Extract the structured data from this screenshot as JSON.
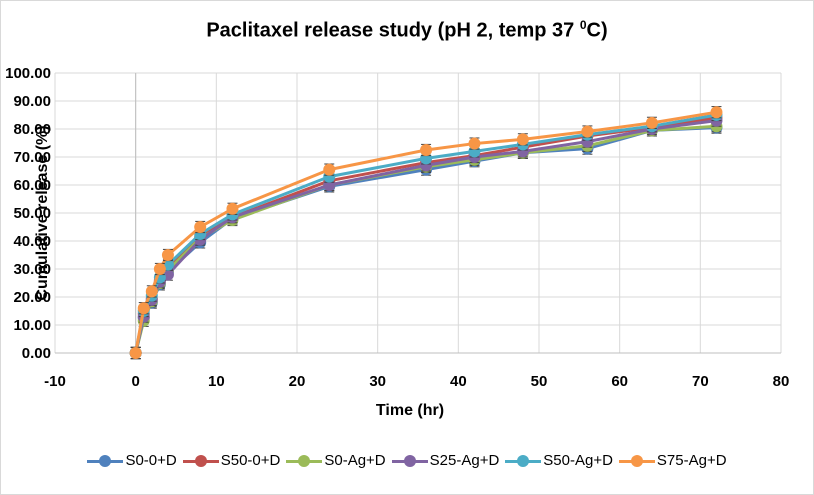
{
  "chart_data": {
    "type": "line",
    "title": "Paclitaxel release study (pH 2, temp 37 ",
    "title_superscript": "0",
    "title_suffix": "C)",
    "xlabel": "Time (hr)",
    "ylabel": "Cumulative release (%)",
    "xlim": [
      -10,
      80
    ],
    "ylim": [
      0,
      100
    ],
    "xticks": [
      -10,
      0,
      10,
      20,
      30,
      40,
      50,
      60,
      70,
      80
    ],
    "yticks": [
      "0.00",
      "10.00",
      "20.00",
      "30.00",
      "40.00",
      "50.00",
      "60.00",
      "70.00",
      "80.00",
      "90.00",
      "100.00"
    ],
    "grid": true,
    "legend_position": "bottom",
    "x": [
      0,
      1,
      2,
      3,
      4,
      8,
      12,
      24,
      36,
      42,
      48,
      56,
      64,
      72
    ],
    "series": [
      {
        "name": "S0-0+D",
        "color": "#4f81bd",
        "values": [
          0,
          12.5,
          18,
          24.5,
          29,
          39.5,
          48,
          59.5,
          65.5,
          68.5,
          71.5,
          73,
          79.5,
          80.5
        ],
        "error": 2
      },
      {
        "name": "S50-0+D",
        "color": "#c0504d",
        "values": [
          0,
          14,
          19.5,
          26,
          30.5,
          41.5,
          48.5,
          61.5,
          68,
          70.5,
          73.5,
          77.5,
          80.5,
          84
        ],
        "error": 2
      },
      {
        "name": "S0-Ag+D",
        "color": "#9bbb59",
        "values": [
          0,
          11.5,
          18.5,
          25,
          29.5,
          41,
          47.5,
          60,
          66.5,
          69,
          71.5,
          74,
          79.5,
          81
        ],
        "error": 2
      },
      {
        "name": "S25-Ag+D",
        "color": "#8064a2",
        "values": [
          0,
          13,
          19,
          25.5,
          28,
          40.5,
          48.5,
          60,
          67,
          70,
          72,
          75.5,
          80,
          83
        ],
        "error": 2
      },
      {
        "name": "S50-Ag+D",
        "color": "#4bacc6",
        "values": [
          0,
          15,
          20.5,
          27,
          31.5,
          42.5,
          49.5,
          63,
          69.5,
          72,
          74.5,
          78,
          81,
          85
        ],
        "error": 2
      },
      {
        "name": "S75-Ag+D",
        "color": "#f79646",
        "values": [
          0,
          16,
          22,
          30,
          35,
          45,
          51.5,
          65.5,
          72.5,
          74.8,
          76.3,
          79.1,
          82.2,
          86
        ],
        "error": 2
      }
    ]
  }
}
